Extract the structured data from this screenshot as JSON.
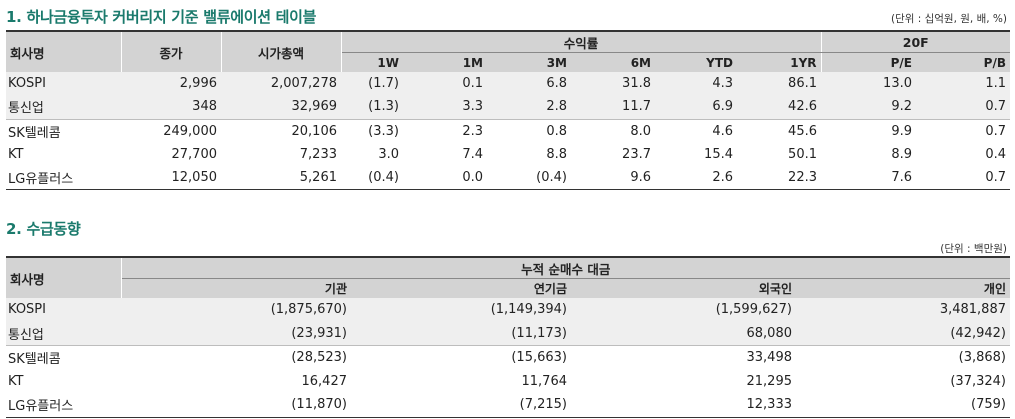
{
  "section1": {
    "title": "1. 하나금융투자 커버리지 기준 밸류에이션 테이블",
    "unit": "(단위 : 십억원, 원, 배, %)",
    "headers": {
      "company": "회사명",
      "price": "종가",
      "mktcap": "시가총액",
      "returns": "수익률",
      "valuation": "20F",
      "w1": "1W",
      "m1": "1M",
      "m3": "3M",
      "m6": "6M",
      "ytd": "YTD",
      "yr1": "1YR",
      "pe": "P/E",
      "pb": "P/B"
    },
    "rows": [
      {
        "name": "KOSPI",
        "price": "2,996",
        "mktcap": "2,007,278",
        "w1": "(1.7)",
        "m1": "0.1",
        "m3": "6.8",
        "m6": "31.8",
        "ytd": "4.3",
        "yr1": "86.1",
        "pe": "13.0",
        "pb": "1.1"
      },
      {
        "name": "통신업",
        "price": "348",
        "mktcap": "32,969",
        "w1": "(1.3)",
        "m1": "3.3",
        "m3": "2.8",
        "m6": "11.7",
        "ytd": "6.9",
        "yr1": "42.6",
        "pe": "9.2",
        "pb": "0.7"
      },
      {
        "name": "SK텔레콤",
        "price": "249,000",
        "mktcap": "20,106",
        "w1": "(3.3)",
        "m1": "2.3",
        "m3": "0.8",
        "m6": "8.0",
        "ytd": "4.6",
        "yr1": "45.6",
        "pe": "9.9",
        "pb": "0.7"
      },
      {
        "name": "KT",
        "price": "27,700",
        "mktcap": "7,233",
        "w1": "3.0",
        "m1": "7.4",
        "m3": "8.8",
        "m6": "23.7",
        "ytd": "15.4",
        "yr1": "50.1",
        "pe": "8.9",
        "pb": "0.4"
      },
      {
        "name": "LG유플러스",
        "price": "12,050",
        "mktcap": "5,261",
        "w1": "(0.4)",
        "m1": "0.0",
        "m3": "(0.4)",
        "m6": "9.6",
        "ytd": "2.6",
        "yr1": "22.3",
        "pe": "7.6",
        "pb": "0.7"
      }
    ]
  },
  "section2": {
    "title": "2. 수급동향",
    "unit": "(단위 : 백만원)",
    "headers": {
      "company": "회사명",
      "group": "누적 순매수 대금",
      "inst": "기관",
      "pension": "연기금",
      "foreign": "외국인",
      "retail": "개인"
    },
    "rows": [
      {
        "name": "KOSPI",
        "inst": "(1,875,670)",
        "pension": "(1,149,394)",
        "foreign": "(1,599,627)",
        "retail": "3,481,887"
      },
      {
        "name": "통신업",
        "inst": "(23,931)",
        "pension": "(11,173)",
        "foreign": "68,080",
        "retail": "(42,942)"
      },
      {
        "name": "SK텔레콤",
        "inst": "(28,523)",
        "pension": "(15,663)",
        "foreign": "33,498",
        "retail": "(3,868)"
      },
      {
        "name": "KT",
        "inst": "16,427",
        "pension": "11,764",
        "foreign": "21,295",
        "retail": "(37,324)"
      },
      {
        "name": "LG유플러스",
        "inst": "(11,870)",
        "pension": "(7,215)",
        "foreign": "12,333",
        "retail": "(759)"
      }
    ]
  }
}
